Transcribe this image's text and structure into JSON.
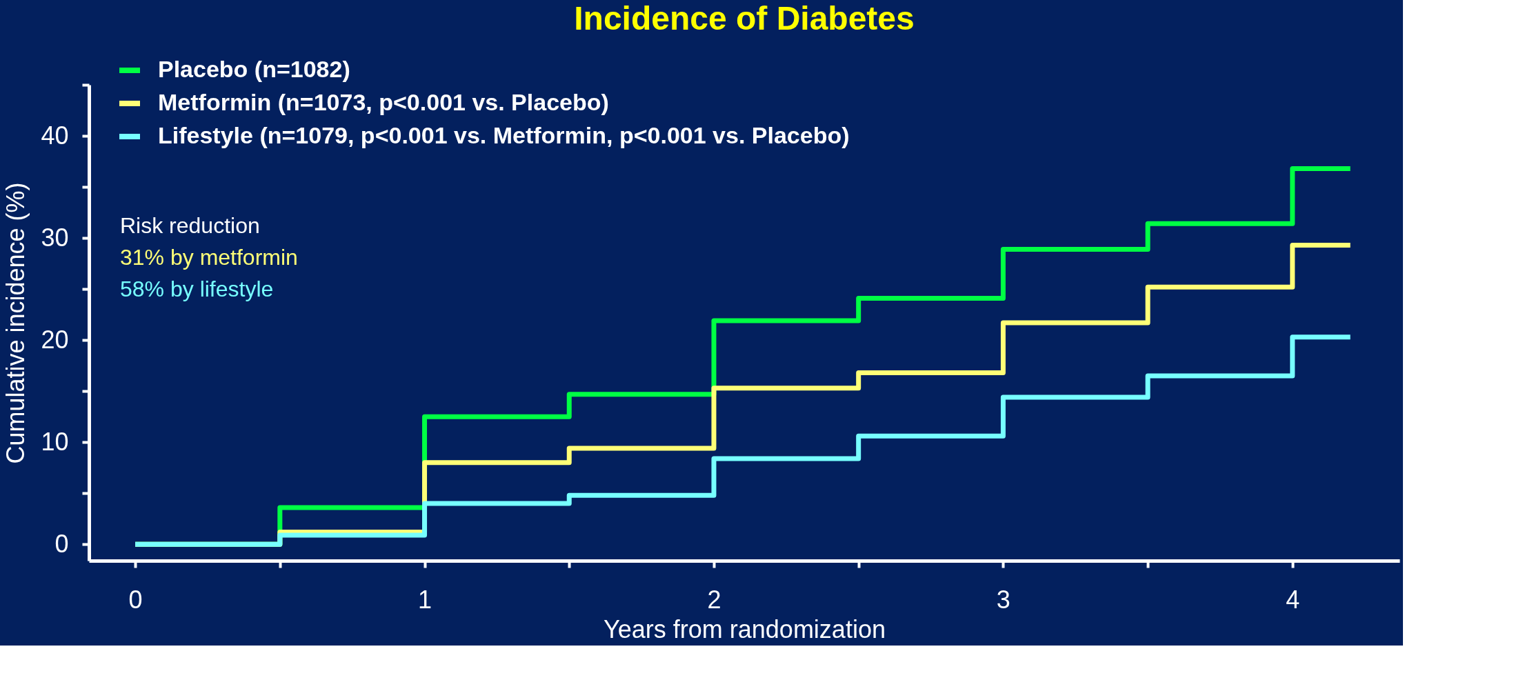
{
  "chart_data": {
    "type": "step",
    "title": "Incidence of Diabetes",
    "xlabel": "Years from randomization",
    "ylabel": "Cumulative incidence (%)",
    "x": [
      0,
      0.5,
      1,
      1.5,
      2,
      2.5,
      3,
      3.5,
      4,
      4.2
    ],
    "series": [
      {
        "name": "Placebo (n=1082)",
        "color": "#00ff44",
        "values": [
          0,
          3.6,
          12.5,
          14.7,
          21.9,
          24.1,
          28.9,
          31.4,
          36.8,
          36.8
        ]
      },
      {
        "name": "Metformin (n=1073, p<0.001 vs. Placebo)",
        "color": "#ffff77",
        "values": [
          0,
          1.2,
          8.0,
          9.4,
          15.3,
          16.8,
          21.7,
          25.2,
          29.3,
          29.3
        ]
      },
      {
        "name": "Lifestyle (n=1079, p<0.001 vs. Metformin, p<0.001 vs. Placebo)",
        "color": "#77ffff",
        "values": [
          0,
          0.9,
          4.0,
          4.8,
          8.4,
          10.6,
          14.4,
          16.5,
          20.3,
          20.3
        ]
      }
    ],
    "xlim": [
      -0.16,
      4.37
    ],
    "ylim": [
      -1.6,
      45
    ],
    "xticks": [
      0,
      {
        "value": 0.5,
        "label": null
      },
      1,
      {
        "value": 1.5,
        "label": null
      },
      2,
      {
        "value": 2.5,
        "label": null
      },
      3,
      {
        "value": 3.5,
        "label": null
      },
      4
    ],
    "yticks": [
      0,
      {
        "value": 5,
        "label": null
      },
      10,
      {
        "value": 15,
        "label": null
      },
      20,
      {
        "value": 25,
        "label": null
      },
      30,
      {
        "value": 35,
        "label": null
      },
      40,
      {
        "value": 45,
        "label": null
      }
    ],
    "annotations": [
      "Risk reduction",
      "31% by metformin",
      "58% by lifestyle"
    ],
    "legend": "top left",
    "grid": false,
    "line_style": "solid",
    "marker": "none"
  }
}
